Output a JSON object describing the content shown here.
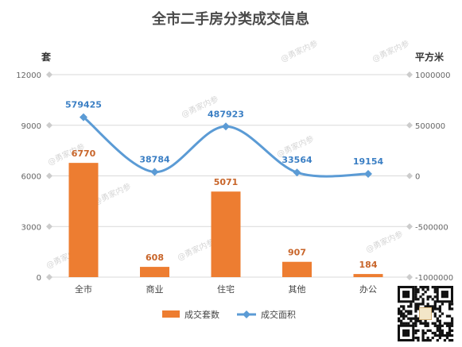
{
  "watermark": "@勇家内参",
  "chart_data": {
    "type": "bar+line",
    "title": "全市二手房分类成交信息",
    "categories": [
      "全市",
      "商业",
      "住宅",
      "其他",
      "办公"
    ],
    "left_axis": {
      "unit": "套",
      "range": [
        0,
        12000
      ],
      "ticks": [
        "0",
        "3000",
        "6000",
        "9000",
        "12000"
      ]
    },
    "right_axis": {
      "unit": "平方米",
      "range": [
        -1000000,
        1000000
      ],
      "ticks": [
        "-1000000",
        "-500000",
        "0",
        "500000",
        "1000000"
      ]
    },
    "series": [
      {
        "name": "成交套数",
        "type": "bar",
        "axis": "left",
        "color": "#ed7d31",
        "values": [
          6770,
          608,
          5071,
          907,
          184
        ],
        "labels": [
          "6770",
          "608",
          "5071",
          "907",
          "184"
        ]
      },
      {
        "name": "成交面积",
        "type": "line",
        "axis": "right",
        "color": "#5b9bd5",
        "values": [
          579425,
          38784,
          487923,
          33564,
          19154
        ],
        "labels": [
          "579425",
          "38784",
          "487923",
          "33564",
          "19154"
        ]
      }
    ],
    "grid": true,
    "legend": "bottom"
  }
}
